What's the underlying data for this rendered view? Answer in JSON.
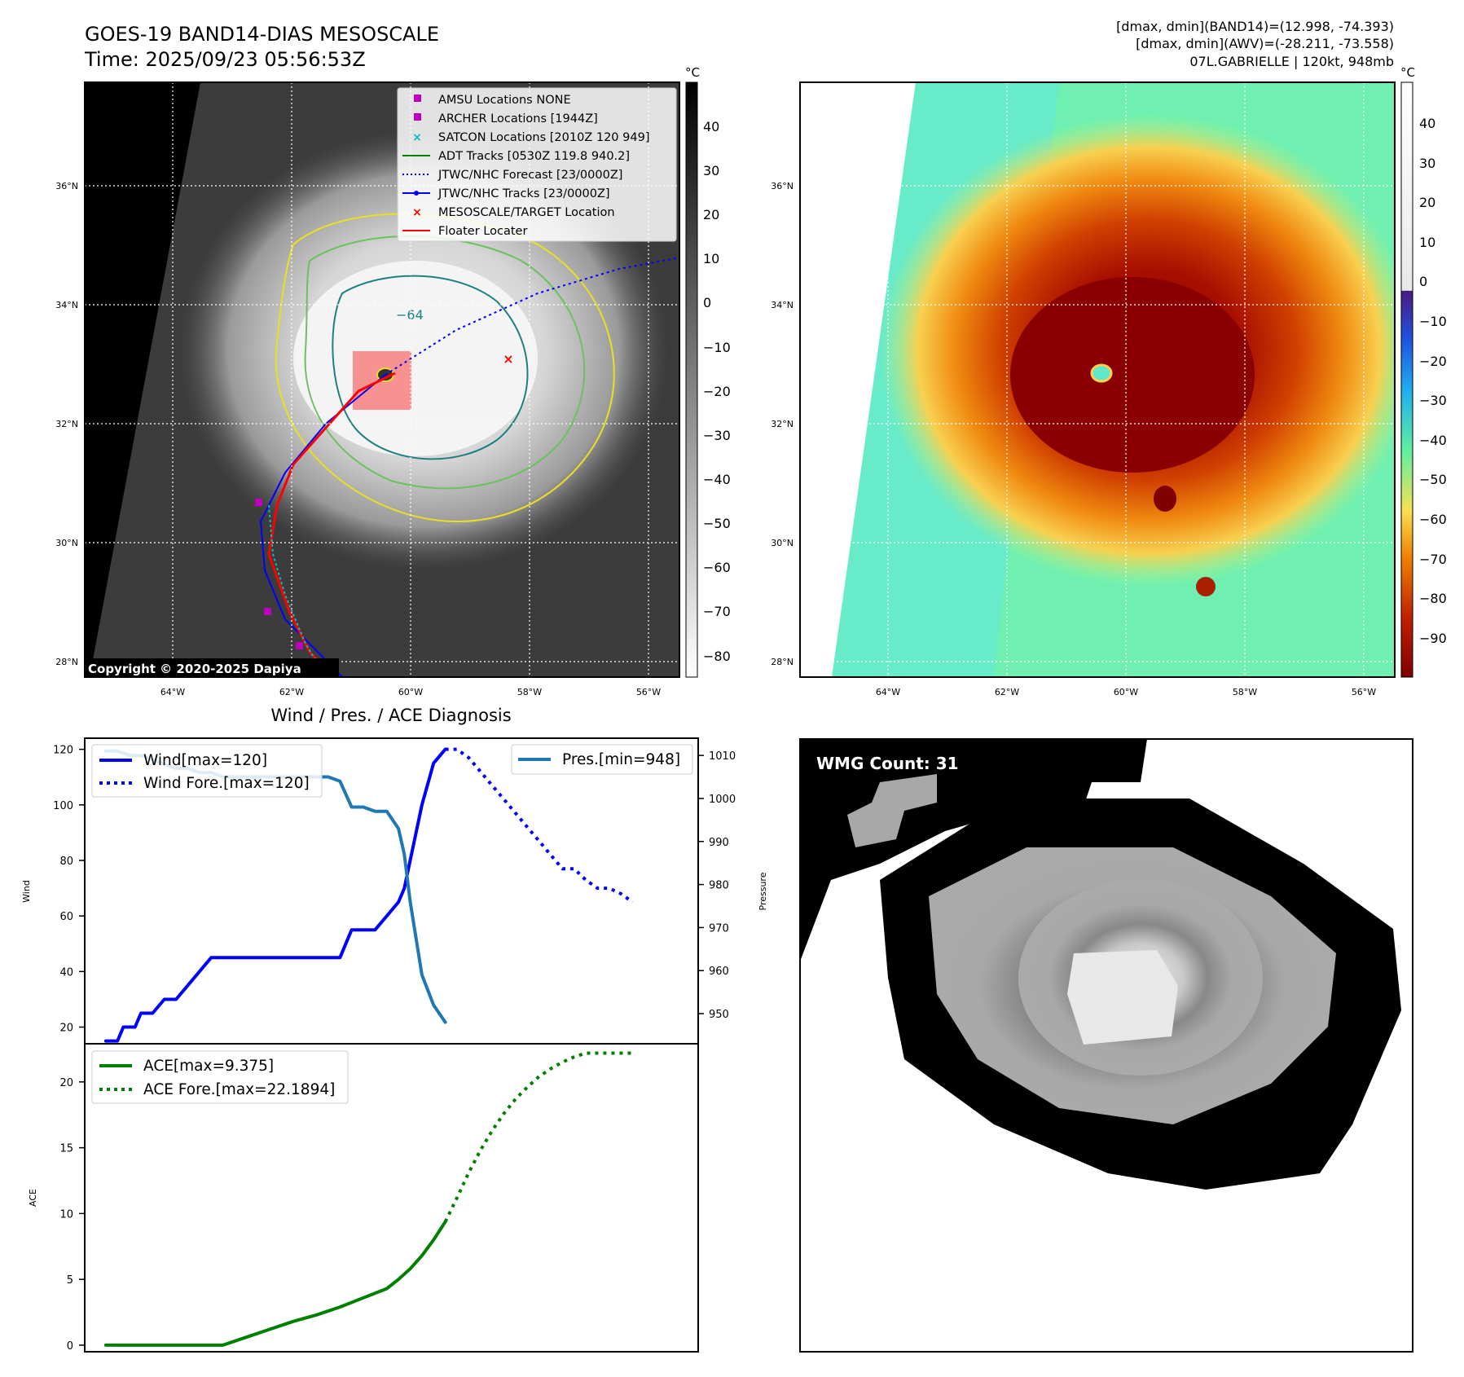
{
  "header": {
    "title_line1": "GOES-19 BAND14-DIAS MESOSCALE",
    "title_line2": "Time: 2025/09/23 05:56:53Z",
    "info_line1": "[dmax, dmin](BAND14)=(12.998, -74.393)",
    "info_line2": "[dmax, dmin](AWV)=(-28.211, -73.558)",
    "info_line3": "07L.GABRIELLE | 120kt, 948mb"
  },
  "map": {
    "lat_labels": [
      "36°N",
      "34°N",
      "32°N",
      "30°N",
      "28°N"
    ],
    "lon_labels": [
      "64°W",
      "62°W",
      "60°W",
      "58°W",
      "56°W"
    ],
    "copyright": "Copyright © 2020-2025 Dapiya",
    "contour_label": "−64",
    "colorbar_unit": "°C",
    "gray_ticks": [
      "40",
      "30",
      "20",
      "10",
      "0",
      "−10",
      "−20",
      "−30",
      "−40",
      "−50",
      "−60",
      "−70",
      "−80"
    ],
    "color_ticks": [
      "40",
      "30",
      "20",
      "10",
      "0",
      "−10",
      "−20",
      "−30",
      "−40",
      "−50",
      "−60",
      "−70",
      "−80",
      "−90"
    ],
    "legend": [
      {
        "label": "AMSU Locations NONE",
        "color": "#bf00bf",
        "marker": "square"
      },
      {
        "label": "ARCHER Locations [1944Z]",
        "color": "#bf00bf",
        "marker": "square"
      },
      {
        "label": "SATCON Locations [2010Z 120 949]",
        "color": "#00bfbf",
        "marker": "x"
      },
      {
        "label": "ADT Tracks [0530Z 119.8 940.2]",
        "color": "#008000",
        "marker": "line"
      },
      {
        "label": "JTWC/NHC Forecast [23/0000Z]",
        "color": "#0000ff",
        "marker": "dotted"
      },
      {
        "label": "JTWC/NHC Tracks [23/0000Z]",
        "color": "#0000ff",
        "marker": "line-dot"
      },
      {
        "label": "MESOSCALE/TARGET Location",
        "color": "#ff0000",
        "marker": "x"
      },
      {
        "label": "Floater Locater",
        "color": "#ff0000",
        "marker": "line"
      }
    ]
  },
  "wmg": {
    "label": "WMG Count: 31"
  },
  "chart_data": [
    {
      "type": "line",
      "title": "Wind / Pres. / ACE Diagnosis",
      "ylabel": "Wind",
      "y2label": "Pressure",
      "ylim": [
        14,
        124
      ],
      "y2lim": [
        943,
        1014
      ],
      "yticks": [
        20,
        40,
        60,
        80,
        100,
        120
      ],
      "y2ticks": [
        950,
        960,
        970,
        980,
        990,
        1000,
        1010
      ],
      "x": [
        0,
        1,
        2,
        3,
        4,
        5,
        6,
        7,
        8,
        9,
        10,
        11,
        12,
        13,
        14,
        15,
        16,
        17,
        18,
        19,
        20,
        21,
        22,
        23,
        24,
        25,
        26,
        27,
        28,
        29,
        30,
        31,
        32,
        33,
        34,
        35,
        36,
        37,
        38,
        39,
        40,
        41,
        42,
        43,
        44,
        45,
        46,
        47,
        48
      ],
      "series": [
        {
          "name": "Wind[max=120]",
          "axis": "left",
          "style": "solid",
          "color": "#0000ff",
          "x": [
            0,
            1,
            1.5,
            2.5,
            3,
            4,
            5,
            6,
            7,
            8,
            9,
            10,
            11,
            12,
            13,
            14,
            15,
            16,
            17,
            18,
            19,
            20,
            21,
            22,
            23,
            24,
            25,
            25.5,
            26,
            27,
            28,
            29
          ],
          "values": [
            15,
            15,
            20,
            20,
            25,
            25,
            30,
            30,
            35,
            40,
            45,
            45,
            45,
            45,
            45,
            45,
            45,
            45,
            45,
            45,
            45,
            45,
            55,
            55,
            55,
            60,
            65,
            70,
            80,
            100,
            115,
            120
          ]
        },
        {
          "name": "Wind Fore.[max=120]",
          "axis": "left",
          "style": "dotted",
          "color": "#0000ff",
          "x": [
            29,
            30,
            31,
            32,
            33,
            34,
            35,
            36,
            37,
            38,
            39,
            40,
            41,
            42,
            43,
            44,
            45
          ],
          "values": [
            120,
            120,
            117,
            112,
            107,
            102,
            97,
            92,
            87,
            82,
            77,
            77,
            73,
            70,
            70,
            68,
            65
          ]
        },
        {
          "name": "Pres.[min=948]",
          "axis": "right",
          "style": "solid",
          "color": "#1f77b4",
          "x": [
            0,
            1,
            2,
            3,
            4,
            5,
            6,
            7,
            8,
            9,
            10,
            11,
            12,
            13,
            14,
            15,
            16,
            17,
            18,
            19,
            20,
            21,
            22,
            23,
            24,
            25,
            25.5,
            26,
            27,
            28,
            29
          ],
          "values": [
            1011,
            1011,
            1010,
            1010,
            1009,
            1008,
            1007,
            1007,
            1006,
            1006,
            1005,
            1005,
            1005,
            1005,
            1005,
            1005,
            1005,
            1005,
            1005,
            1005,
            1004,
            998,
            998,
            997,
            997,
            993,
            987,
            976,
            959,
            952,
            948
          ]
        }
      ]
    },
    {
      "type": "line",
      "ylabel": "ACE",
      "ylim": [
        -0.5,
        22.9
      ],
      "yticks": [
        0,
        5,
        10,
        15,
        20
      ],
      "series": [
        {
          "name": "ACE[max=9.375]",
          "style": "solid",
          "color": "#008000",
          "x": [
            0,
            2,
            4,
            6,
            8,
            10,
            12,
            14,
            16,
            18,
            20,
            22,
            24,
            25,
            26,
            27,
            28,
            29
          ],
          "values": [
            0,
            0,
            0,
            0,
            0,
            0,
            0.6,
            1.2,
            1.8,
            2.3,
            2.9,
            3.6,
            4.3,
            5.0,
            5.8,
            6.8,
            8.0,
            9.375
          ]
        },
        {
          "name": "ACE Fore.[max=22.1894]",
          "style": "dotted",
          "color": "#008000",
          "x": [
            29,
            30,
            31,
            32,
            33,
            34,
            35,
            36,
            37,
            38,
            39,
            40,
            41,
            42,
            43,
            44,
            45
          ],
          "values": [
            9.375,
            11.2,
            13.1,
            14.8,
            16.3,
            17.6,
            18.7,
            19.6,
            20.4,
            21.0,
            21.5,
            21.9,
            22.19,
            22.19,
            22.19,
            22.19,
            22.19
          ]
        }
      ]
    }
  ]
}
